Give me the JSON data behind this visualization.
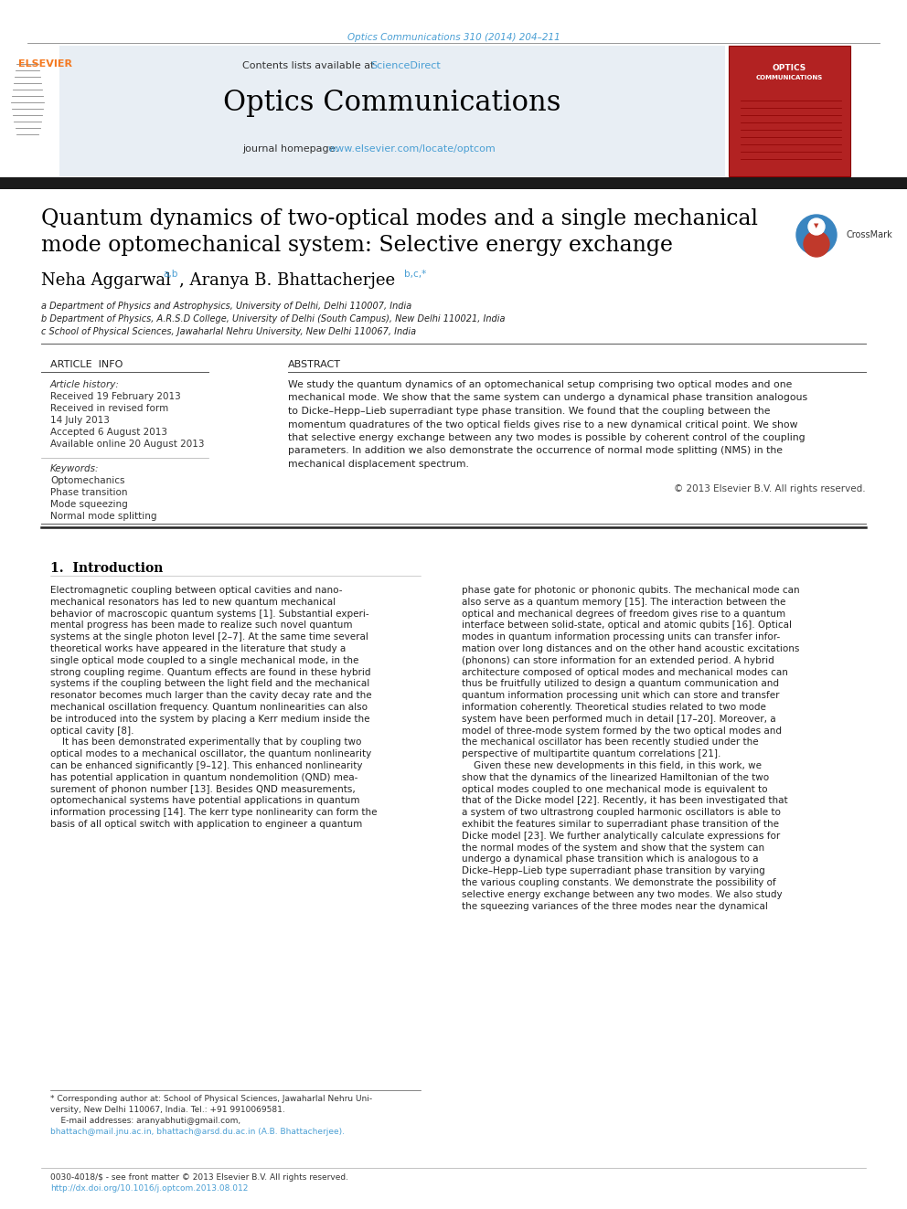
{
  "page_bg": "#ffffff",
  "top_citation": "Optics Communications 310 (2014) 204–211",
  "top_citation_color": "#4a9fd4",
  "journal_name": "Optics Communications",
  "journal_name_color": "#000000",
  "contents_text": "Contents lists available at ",
  "science_direct": "ScienceDirect",
  "science_direct_color": "#4a9fd4",
  "homepage_text": "journal homepage: ",
  "homepage_url": "www.elsevier.com/locate/optcom",
  "homepage_url_color": "#4a9fd4",
  "header_bg": "#e8eef4",
  "top_bar_color": "#2c2c2c",
  "elsevier_color": "#f47920",
  "article_info_title": "ARTICLE  INFO",
  "abstract_title": "ABSTRACT",
  "article_history_title": "Article history:",
  "received": "Received 19 February 2013",
  "revised": "Received in revised form",
  "revised2": "14 July 2013",
  "accepted": "Accepted 6 August 2013",
  "available": "Available online 20 August 2013",
  "keywords_title": "Keywords:",
  "keywords": [
    "Optomechanics",
    "Phase transition",
    "Mode squeezing",
    "Normal mode splitting"
  ],
  "abstract_text": "We study the quantum dynamics of an optomechanical setup comprising two optical modes and one\nmechanical mode. We show that the same system can undergo a dynamical phase transition analogous\nto Dicke–Hepp–Lieb superradiant type phase transition. We found that the coupling between the\nmomentum quadratures of the two optical fields gives rise to a new dynamical critical point. We show\nthat selective energy exchange between any two modes is possible by coherent control of the coupling\nparameters. In addition we also demonstrate the occurrence of normal mode splitting (NMS) in the\nmechanical displacement spectrum.",
  "copyright": "© 2013 Elsevier B.V. All rights reserved.",
  "section1_title": "1.  Introduction",
  "intro_col1": "Electromagnetic coupling between optical cavities and nano-\nmechanical resonators has led to new quantum mechanical\nbehavior of macroscopic quantum systems [1]. Substantial experi-\nmental progress has been made to realize such novel quantum\nsystems at the single photon level [2–7]. At the same time several\ntheoretical works have appeared in the literature that study a\nsingle optical mode coupled to a single mechanical mode, in the\nstrong coupling regime. Quantum effects are found in these hybrid\nsystems if the coupling between the light field and the mechanical\nresonator becomes much larger than the cavity decay rate and the\nmechanical oscillation frequency. Quantum nonlinearities can also\nbe introduced into the system by placing a Kerr medium inside the\noptical cavity [8].\n    It has been demonstrated experimentally that by coupling two\noptical modes to a mechanical oscillator, the quantum nonlinearity\ncan be enhanced significantly [9–12]. This enhanced nonlinearity\nhas potential application in quantum nondemolition (QND) mea-\nsurement of phonon number [13]. Besides QND measurements,\noptomechanical systems have potential applications in quantum\ninformation processing [14]. The kerr type nonlinearity can form the\nbasis of all optical switch with application to engineer a quantum",
  "intro_col2": "phase gate for photonic or phononic qubits. The mechanical mode can\nalso serve as a quantum memory [15]. The interaction between the\noptical and mechanical degrees of freedom gives rise to a quantum\ninterface between solid-state, optical and atomic qubits [16]. Optical\nmodes in quantum information processing units can transfer infor-\nmation over long distances and on the other hand acoustic excitations\n(phonons) can store information for an extended period. A hybrid\narchitecture composed of optical modes and mechanical modes can\nthus be fruitfully utilized to design a quantum communication and\nquantum information processing unit which can store and transfer\ninformation coherently. Theoretical studies related to two mode\nsystem have been performed much in detail [17–20]. Moreover, a\nmodel of three-mode system formed by the two optical modes and\nthe mechanical oscillator has been recently studied under the\nperspective of multipartite quantum correlations [21].\n    Given these new developments in this field, in this work, we\nshow that the dynamics of the linearized Hamiltonian of the two\noptical modes coupled to one mechanical mode is equivalent to\nthat of the Dicke model [22]. Recently, it has been investigated that\na system of two ultrastrong coupled harmonic oscillators is able to\nexhibit the features similar to superradiant phase transition of the\nDicke model [23]. We further analytically calculate expressions for\nthe normal modes of the system and show that the system can\nundergo a dynamical phase transition which is analogous to a\nDicke–Hepp–Lieb type superradiant phase transition by varying\nthe various coupling constants. We demonstrate the possibility of\nselective energy exchange between any two modes. We also study\nthe squeezing variances of the three modes near the dynamical",
  "footer_line1": "0030-4018/$ - see front matter © 2013 Elsevier B.V. All rights reserved.",
  "footer_line2": "http://dx.doi.org/10.1016/j.optcom.2013.08.012",
  "footnote_line1": "* Corresponding author at: School of Physical Sciences, Jawaharlal Nehru Uni-",
  "footnote_line2": "versity, New Delhi 110067, India. Tel.: +91 9910069581.",
  "footnote_line3": "    E-mail addresses: aranyabhuti@gmail.com,",
  "footnote_line4": "bhattach@mail.jnu.ac.in, bhattach@arsd.du.ac.in (A.B. Bhattacherjee).",
  "link_color": "#4a9fd4",
  "affil_a": "a Department of Physics and Astrophysics, University of Delhi, Delhi 110007, India",
  "affil_b": "b Department of Physics, A.R.S.D College, University of Delhi (South Campus), New Delhi 110021, India",
  "affil_c": "c School of Physical Sciences, Jawaharlal Nehru University, New Delhi 110067, India"
}
